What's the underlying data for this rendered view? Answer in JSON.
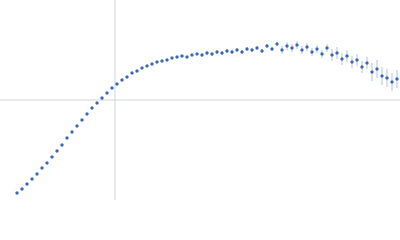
{
  "chart_data": {
    "type": "scatter",
    "xlim": [
      0,
      400
    ],
    "ylim": [
      0,
      200
    ],
    "xline": 115,
    "yline": 100,
    "color": "#3a66b8",
    "error_color": "#9db3dc",
    "x": [
      17,
      22,
      27,
      32,
      37,
      42,
      47,
      52,
      57,
      62,
      67,
      72,
      77,
      82,
      87,
      92,
      97,
      102,
      107,
      112,
      117,
      122,
      127,
      132,
      137,
      142,
      147,
      152,
      157,
      162,
      167,
      172,
      177,
      182,
      187,
      192,
      197,
      202,
      207,
      212,
      217,
      222,
      227,
      232,
      237,
      242,
      247,
      252,
      257,
      262,
      267,
      272,
      277,
      282,
      287,
      292,
      297,
      302,
      307,
      312,
      317,
      322,
      327,
      332,
      337,
      342,
      347,
      352,
      357,
      362,
      367,
      372,
      377,
      382,
      387,
      392,
      397
    ],
    "values": [
      7,
      11,
      16,
      21,
      26,
      32,
      37,
      43,
      49,
      55,
      62,
      68,
      74,
      80,
      86,
      92,
      97,
      102,
      107,
      112,
      116,
      120,
      123,
      127,
      129,
      132,
      134,
      136,
      138,
      139,
      140,
      142,
      143,
      144,
      143,
      145,
      146,
      145,
      147,
      146,
      148,
      147,
      149,
      148,
      150,
      148,
      151,
      150,
      152,
      149,
      154,
      151,
      156,
      150,
      154,
      152,
      155,
      150,
      153,
      148,
      151,
      146,
      152,
      145,
      147,
      141,
      144,
      138,
      140,
      133,
      137,
      128,
      131,
      124,
      122,
      118,
      121
    ],
    "errors": [
      1,
      1,
      1,
      1,
      1,
      1,
      1,
      1,
      1,
      1,
      1,
      1,
      1,
      1,
      1,
      1,
      1,
      1,
      1,
      1,
      1,
      1,
      1,
      1,
      1,
      1,
      1,
      1,
      1,
      1,
      1,
      1,
      1,
      1,
      1,
      1,
      1,
      2,
      2,
      2,
      2,
      2,
      2,
      2,
      2,
      2,
      2,
      2,
      2,
      2,
      2,
      2,
      2,
      4,
      4,
      4,
      4,
      4,
      4,
      4,
      4,
      4,
      4,
      6,
      6,
      6,
      6,
      6,
      6,
      6,
      6,
      9,
      9,
      9,
      9,
      9,
      9
    ]
  }
}
